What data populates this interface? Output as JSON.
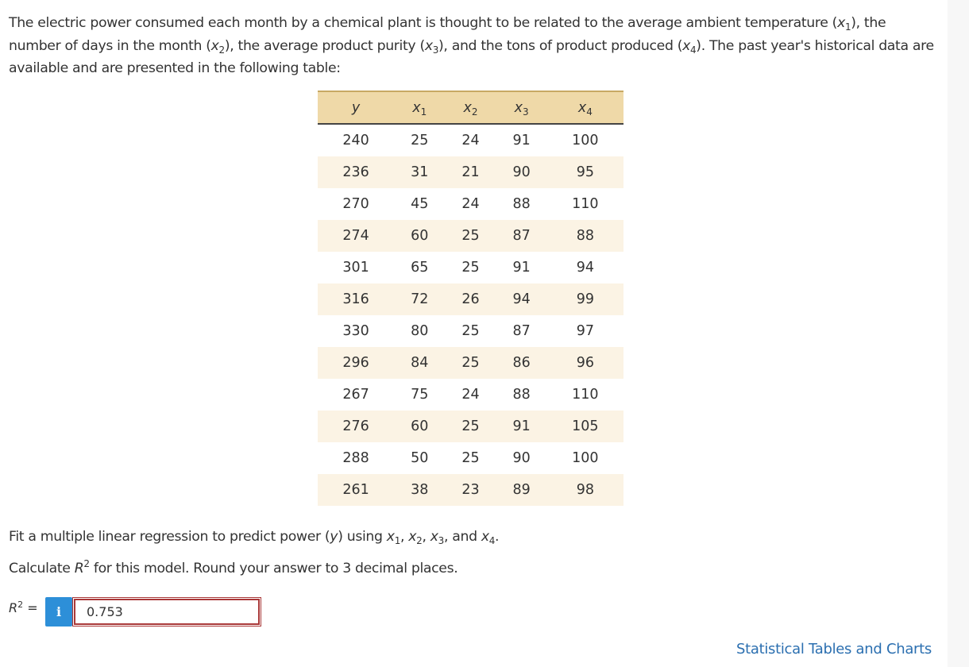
{
  "intro": {
    "part1": "The electric power consumed each month by a chemical plant is thought to be related to the average ambient temperature (",
    "part2": "), the number of days in the month (",
    "part3": "), the average product purity (",
    "part4": "), and the tons of product produced (",
    "part5": "). The past year's historical data are available and are presented in the following table:"
  },
  "vars": {
    "x": "x",
    "sub1": "1",
    "sub2": "2",
    "sub3": "3",
    "sub4": "4",
    "y": "y"
  },
  "table": {
    "columns": [
      "y",
      "x1",
      "x2",
      "x3",
      "x4"
    ],
    "rows": [
      [
        "240",
        "25",
        "24",
        "91",
        "100"
      ],
      [
        "236",
        "31",
        "21",
        "90",
        "95"
      ],
      [
        "270",
        "45",
        "24",
        "88",
        "110"
      ],
      [
        "274",
        "60",
        "25",
        "87",
        "88"
      ],
      [
        "301",
        "65",
        "25",
        "91",
        "94"
      ],
      [
        "316",
        "72",
        "26",
        "94",
        "99"
      ],
      [
        "330",
        "80",
        "25",
        "87",
        "97"
      ],
      [
        "296",
        "84",
        "25",
        "86",
        "96"
      ],
      [
        "267",
        "75",
        "24",
        "88",
        "110"
      ],
      [
        "276",
        "60",
        "25",
        "91",
        "105"
      ],
      [
        "288",
        "50",
        "25",
        "90",
        "100"
      ],
      [
        "261",
        "38",
        "23",
        "89",
        "98"
      ]
    ]
  },
  "question": {
    "fit_prefix": "Fit a multiple linear regression to predict power (",
    "fit_middle": ") using ",
    "comma": ", ",
    "and": ", and ",
    "period": ".",
    "calc_prefix": "Calculate ",
    "r": "R",
    "sup": "2",
    "calc_suffix": " for this model. Round your answer to 3 decimal places."
  },
  "answer": {
    "label_r": "R",
    "label_sup": "2",
    "label_eq": " =",
    "info_icon": "i",
    "value": "0.753"
  },
  "footer": {
    "link_text": "Statistical Tables and Charts"
  },
  "colors": {
    "table_header_bg": "#efd9a8",
    "table_stripe_bg": "#fbf3e4",
    "info_button_bg": "#2d8fd8",
    "input_border": "#a93838",
    "link": "#2b6fb0"
  }
}
